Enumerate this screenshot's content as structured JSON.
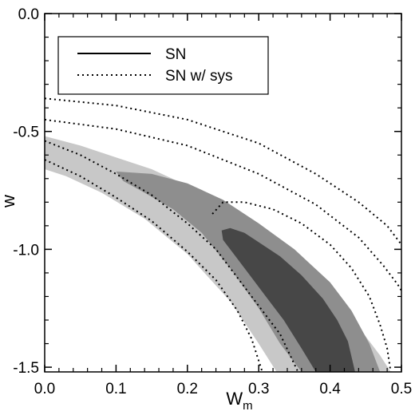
{
  "chart_data": {
    "type": "area",
    "xlabel": "W",
    "xlabel_sub": "m",
    "ylabel": "w",
    "xlim": [
      0.0,
      0.5
    ],
    "ylim": [
      -1.52,
      0.0
    ],
    "xticks": [
      "0.0",
      "0.1",
      "0.2",
      "0.3",
      "0.4",
      "0.5"
    ],
    "xtick_values": [
      0.0,
      0.1,
      0.2,
      0.3,
      0.4,
      0.5
    ],
    "yticks": [
      "0.0",
      "-0.5",
      "-1.0",
      "-1.5"
    ],
    "ytick_values": [
      0.0,
      -0.5,
      -1.0,
      -1.5
    ],
    "grid": false,
    "legend": {
      "placement": "top-left",
      "entries": [
        {
          "label": "SN",
          "style": "solid"
        },
        {
          "label": "SN w/ sys",
          "style": "dotted"
        }
      ]
    },
    "filled_regions": [
      {
        "level": "outer",
        "color": "#c8c8c8",
        "points": [
          [
            0.0,
            -0.52
          ],
          [
            0.05,
            -0.56
          ],
          [
            0.1,
            -0.61
          ],
          [
            0.15,
            -0.66
          ],
          [
            0.2,
            -0.73
          ],
          [
            0.25,
            -0.82
          ],
          [
            0.3,
            -0.92
          ],
          [
            0.35,
            -1.04
          ],
          [
            0.4,
            -1.18
          ],
          [
            0.44,
            -1.33
          ],
          [
            0.47,
            -1.45
          ],
          [
            0.485,
            -1.52
          ],
          [
            0.325,
            -1.52
          ],
          [
            0.3,
            -1.4
          ],
          [
            0.26,
            -1.22
          ],
          [
            0.2,
            -1.02
          ],
          [
            0.14,
            -0.87
          ],
          [
            0.08,
            -0.76
          ],
          [
            0.03,
            -0.69
          ],
          [
            0.0,
            -0.66
          ]
        ]
      },
      {
        "level": "middle",
        "color": "#8e8e8e",
        "points": [
          [
            0.1,
            -0.67
          ],
          [
            0.15,
            -0.68
          ],
          [
            0.2,
            -0.72
          ],
          [
            0.25,
            -0.79
          ],
          [
            0.3,
            -0.89
          ],
          [
            0.35,
            -1.0
          ],
          [
            0.4,
            -1.14
          ],
          [
            0.43,
            -1.26
          ],
          [
            0.455,
            -1.4
          ],
          [
            0.47,
            -1.52
          ],
          [
            0.36,
            -1.52
          ],
          [
            0.33,
            -1.4
          ],
          [
            0.3,
            -1.25
          ],
          [
            0.26,
            -1.08
          ],
          [
            0.22,
            -0.93
          ],
          [
            0.18,
            -0.83
          ],
          [
            0.14,
            -0.76
          ],
          [
            0.11,
            -0.71
          ]
        ]
      },
      {
        "level": "inner",
        "color": "#474747",
        "points": [
          [
            0.248,
            -0.92
          ],
          [
            0.26,
            -0.91
          ],
          [
            0.28,
            -0.93
          ],
          [
            0.3,
            -0.97
          ],
          [
            0.33,
            -1.03
          ],
          [
            0.36,
            -1.11
          ],
          [
            0.39,
            -1.21
          ],
          [
            0.41,
            -1.3
          ],
          [
            0.425,
            -1.39
          ],
          [
            0.435,
            -1.52
          ],
          [
            0.38,
            -1.52
          ],
          [
            0.36,
            -1.42
          ],
          [
            0.335,
            -1.3
          ],
          [
            0.31,
            -1.2
          ],
          [
            0.285,
            -1.1
          ],
          [
            0.265,
            -1.02
          ],
          [
            0.25,
            -0.96
          ]
        ]
      }
    ],
    "dotted_contours": [
      {
        "points": [
          [
            0.0,
            -0.36
          ],
          [
            0.1,
            -0.39
          ],
          [
            0.2,
            -0.45
          ],
          [
            0.3,
            -0.55
          ],
          [
            0.38,
            -0.68
          ],
          [
            0.44,
            -0.8
          ],
          [
            0.48,
            -0.9
          ],
          [
            0.505,
            -1.0
          ]
        ]
      },
      {
        "points": [
          [
            0.0,
            -0.45
          ],
          [
            0.1,
            -0.49
          ],
          [
            0.2,
            -0.56
          ],
          [
            0.3,
            -0.68
          ],
          [
            0.38,
            -0.81
          ],
          [
            0.44,
            -0.95
          ],
          [
            0.475,
            -1.07
          ],
          [
            0.495,
            -1.15
          ],
          [
            0.505,
            -1.2
          ]
        ]
      },
      {
        "points": [
          [
            0.0,
            -0.54
          ],
          [
            0.05,
            -0.6
          ],
          [
            0.1,
            -0.68
          ],
          [
            0.15,
            -0.77
          ],
          [
            0.2,
            -0.89
          ],
          [
            0.24,
            -1.0
          ],
          [
            0.27,
            -1.12
          ],
          [
            0.3,
            -1.24
          ],
          [
            0.33,
            -1.36
          ],
          [
            0.355,
            -1.52
          ]
        ]
      },
      {
        "points": [
          [
            0.0,
            -0.62
          ],
          [
            0.05,
            -0.69
          ],
          [
            0.1,
            -0.78
          ],
          [
            0.15,
            -0.88
          ],
          [
            0.2,
            -1.01
          ],
          [
            0.24,
            -1.13
          ],
          [
            0.27,
            -1.26
          ],
          [
            0.29,
            -1.38
          ],
          [
            0.305,
            -1.52
          ]
        ]
      },
      {
        "points": [
          [
            0.235,
            -0.85
          ],
          [
            0.25,
            -0.8
          ],
          [
            0.28,
            -0.8
          ],
          [
            0.32,
            -0.83
          ],
          [
            0.36,
            -0.89
          ],
          [
            0.4,
            -0.98
          ],
          [
            0.43,
            -1.08
          ],
          [
            0.455,
            -1.2
          ],
          [
            0.47,
            -1.32
          ],
          [
            0.48,
            -1.42
          ],
          [
            0.485,
            -1.52
          ]
        ]
      }
    ]
  }
}
